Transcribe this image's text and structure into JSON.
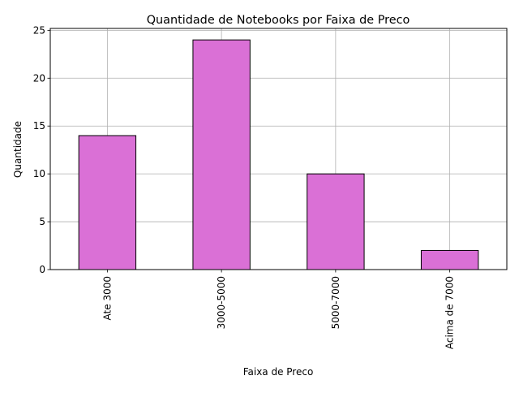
{
  "chart_data": {
    "type": "bar",
    "title": "Quantidade de Notebooks por Faixa de Preco",
    "xlabel": "Faixa de Preco",
    "ylabel": "Quantidade",
    "categories": [
      "Ate 3000",
      "3000-5000",
      "5000-7000",
      "Acima de 7000"
    ],
    "values": [
      14,
      24,
      10,
      2
    ],
    "ylim": [
      0,
      25.2
    ],
    "yticks": [
      0,
      5,
      10,
      15,
      20,
      25
    ],
    "grid": true,
    "legend": "none",
    "colors": {
      "bar_fill": "#da70d6",
      "bar_edge": "#000000",
      "grid": "#b0b0b0"
    }
  }
}
